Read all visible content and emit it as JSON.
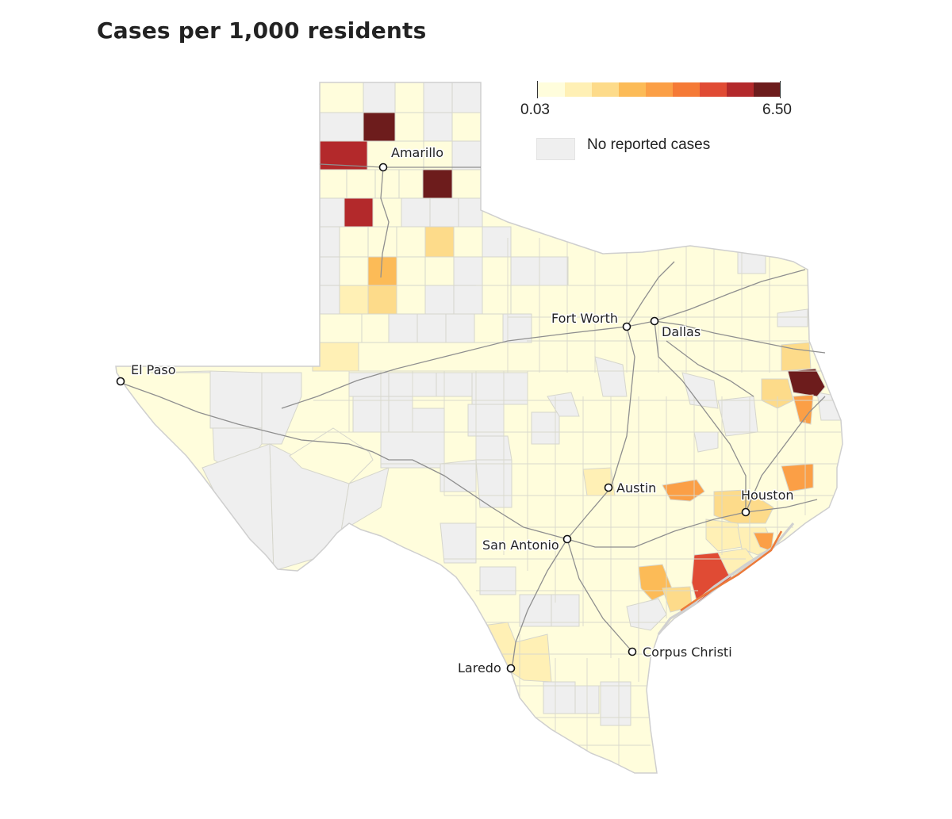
{
  "title": "Cases per 1,000 residents",
  "legend": {
    "min_label": "0.03",
    "max_label": "6.50",
    "scale_colors": [
      "#fffddc",
      "#fff0b5",
      "#fddb8a",
      "#fcbb57",
      "#fb9f46",
      "#f57a36",
      "#e04b34",
      "#b3292b",
      "#6d1c1c"
    ],
    "no_data_label": "No reported cases",
    "no_data_color": "#efefef"
  },
  "cities": [
    {
      "name": "Amarillo"
    },
    {
      "name": "Fort Worth"
    },
    {
      "name": "Dallas"
    },
    {
      "name": "El Paso"
    },
    {
      "name": "Austin"
    },
    {
      "name": "Houston"
    },
    {
      "name": "San Antonio"
    },
    {
      "name": "Corpus Christi"
    },
    {
      "name": "Laredo"
    }
  ],
  "colors": {
    "low": "#fffddc",
    "no_data": "#efefef",
    "county_border": "#d6d6cc",
    "state_border": "#cfcfcf",
    "highway": "#8f8f8f"
  }
}
